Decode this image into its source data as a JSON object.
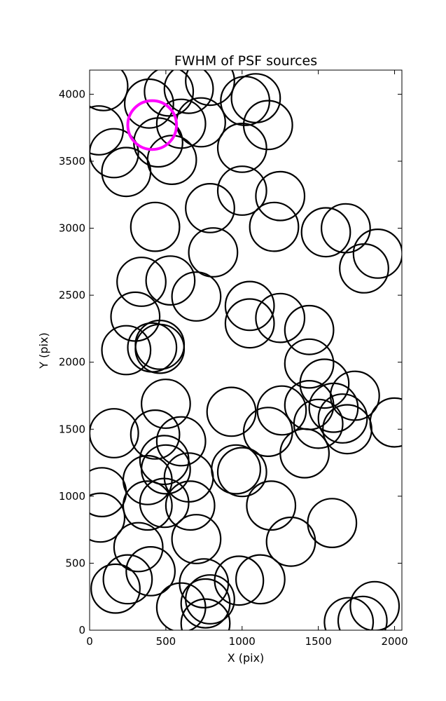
{
  "chart_data": {
    "type": "scatter",
    "title": "FWHM of PSF sources",
    "xlabel": "X (pix)",
    "ylabel": "Y (pix)",
    "xlim": [
      0,
      2048
    ],
    "ylim": [
      0,
      4180
    ],
    "x_ticks": [
      0,
      500,
      1000,
      1500,
      2000
    ],
    "y_ticks": [
      0,
      500,
      1000,
      1500,
      2000,
      2500,
      3000,
      3500,
      4000
    ],
    "x_tick_labels": [
      "0",
      "500",
      "1000",
      "1500",
      "2000"
    ],
    "y_tick_labels": [
      "0",
      "500",
      "1000",
      "1500",
      "2000",
      "2500",
      "3000",
      "3500",
      "4000"
    ],
    "grid": false,
    "marker": "open circle",
    "marker_radius_pix": 160,
    "colors": {
      "default": "#000000",
      "highlight": "#ff00ff"
    },
    "series": [
      {
        "color": "#000000",
        "points": [
          {
            "x": 90,
            "y": 4060
          },
          {
            "x": 390,
            "y": 3930
          },
          {
            "x": 520,
            "y": 4020
          },
          {
            "x": 650,
            "y": 4040
          },
          {
            "x": 790,
            "y": 4100
          },
          {
            "x": 1020,
            "y": 3950
          },
          {
            "x": 1090,
            "y": 3970
          },
          {
            "x": 1170,
            "y": 3770
          },
          {
            "x": 60,
            "y": 3730
          },
          {
            "x": 160,
            "y": 3560
          },
          {
            "x": 240,
            "y": 3420
          },
          {
            "x": 450,
            "y": 3640
          },
          {
            "x": 540,
            "y": 3510
          },
          {
            "x": 600,
            "y": 3780
          },
          {
            "x": 730,
            "y": 3790
          },
          {
            "x": 1000,
            "y": 3600
          },
          {
            "x": 1000,
            "y": 3280
          },
          {
            "x": 1250,
            "y": 3240
          },
          {
            "x": 790,
            "y": 3150
          },
          {
            "x": 430,
            "y": 3010
          },
          {
            "x": 1210,
            "y": 3010
          },
          {
            "x": 1550,
            "y": 2970
          },
          {
            "x": 1680,
            "y": 3000
          },
          {
            "x": 1890,
            "y": 2810
          },
          {
            "x": 1800,
            "y": 2700
          },
          {
            "x": 810,
            "y": 2820
          },
          {
            "x": 340,
            "y": 2600
          },
          {
            "x": 530,
            "y": 2610
          },
          {
            "x": 700,
            "y": 2490
          },
          {
            "x": 300,
            "y": 2340
          },
          {
            "x": 1050,
            "y": 2420
          },
          {
            "x": 1050,
            "y": 2290
          },
          {
            "x": 1250,
            "y": 2330
          },
          {
            "x": 1440,
            "y": 2240
          },
          {
            "x": 240,
            "y": 2090
          },
          {
            "x": 410,
            "y": 2110
          },
          {
            "x": 460,
            "y": 2130
          },
          {
            "x": 460,
            "y": 2100
          },
          {
            "x": 1440,
            "y": 1990
          },
          {
            "x": 1540,
            "y": 1840
          },
          {
            "x": 1740,
            "y": 1750
          },
          {
            "x": 1440,
            "y": 1680
          },
          {
            "x": 1600,
            "y": 1660
          },
          {
            "x": 1660,
            "y": 1580
          },
          {
            "x": 1690,
            "y": 1500
          },
          {
            "x": 1500,
            "y": 1540
          },
          {
            "x": 2000,
            "y": 1550
          },
          {
            "x": 1260,
            "y": 1640
          },
          {
            "x": 1170,
            "y": 1480
          },
          {
            "x": 1410,
            "y": 1320
          },
          {
            "x": 930,
            "y": 1630
          },
          {
            "x": 500,
            "y": 1690
          },
          {
            "x": 160,
            "y": 1470
          },
          {
            "x": 430,
            "y": 1460
          },
          {
            "x": 600,
            "y": 1410
          },
          {
            "x": 490,
            "y": 1270
          },
          {
            "x": 500,
            "y": 1200
          },
          {
            "x": 650,
            "y": 1140
          },
          {
            "x": 380,
            "y": 1120
          },
          {
            "x": 960,
            "y": 1200
          },
          {
            "x": 1000,
            "y": 1180
          },
          {
            "x": 80,
            "y": 1030
          },
          {
            "x": 70,
            "y": 840
          },
          {
            "x": 380,
            "y": 930
          },
          {
            "x": 490,
            "y": 950
          },
          {
            "x": 660,
            "y": 930
          },
          {
            "x": 1190,
            "y": 930
          },
          {
            "x": 1320,
            "y": 660
          },
          {
            "x": 1590,
            "y": 800
          },
          {
            "x": 700,
            "y": 680
          },
          {
            "x": 320,
            "y": 620
          },
          {
            "x": 400,
            "y": 440
          },
          {
            "x": 250,
            "y": 380
          },
          {
            "x": 170,
            "y": 310
          },
          {
            "x": 600,
            "y": 170
          },
          {
            "x": 750,
            "y": 350
          },
          {
            "x": 760,
            "y": 200
          },
          {
            "x": 790,
            "y": 230
          },
          {
            "x": 760,
            "y": 50
          },
          {
            "x": 980,
            "y": 370
          },
          {
            "x": 1120,
            "y": 380
          },
          {
            "x": 1700,
            "y": 60
          },
          {
            "x": 1790,
            "y": 70
          },
          {
            "x": 1870,
            "y": 180
          }
        ]
      },
      {
        "color": "#ff00ff",
        "points": [
          {
            "x": 410,
            "y": 3770
          }
        ]
      }
    ]
  }
}
